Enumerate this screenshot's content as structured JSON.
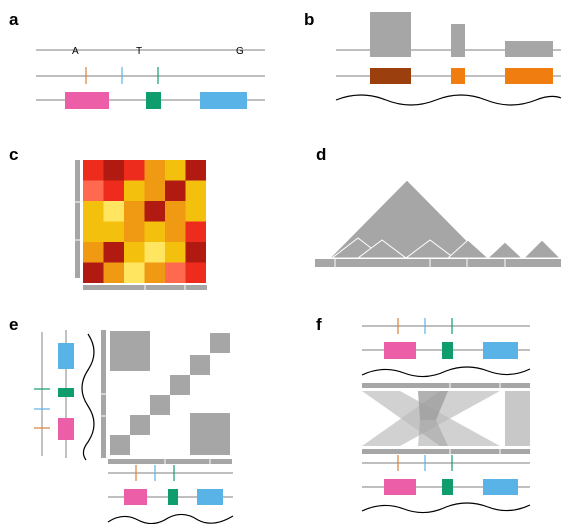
{
  "panels": {
    "a": {
      "label": "a",
      "bases": [
        "A",
        "T",
        "G"
      ]
    },
    "b": {
      "label": "b"
    },
    "c": {
      "label": "c"
    },
    "d": {
      "label": "d"
    },
    "e": {
      "label": "e"
    },
    "f": {
      "label": "f"
    }
  },
  "colors": {
    "pink": "#ec5fa8",
    "green": "#109d6e",
    "blue": "#5ab3e6",
    "orange_tick": "#d98035",
    "gray": "#a6a6a6",
    "brown": "#9c3f0e",
    "orange": "#f07d10"
  },
  "heatmap": {
    "rows": [
      [
        "#ee2c1e",
        "#b01a10",
        "#ee2c1e",
        "#f09a13",
        "#f4c00e",
        "#b01a10"
      ],
      [
        "#ff6950",
        "#ee2c1e",
        "#f4c00e",
        "#f09a13",
        "#b01a10",
        "#f4c00e"
      ],
      [
        "#f4c00e",
        "#ffe560",
        "#f09a13",
        "#b01a10",
        "#f09a13",
        "#f4c00e"
      ],
      [
        "#f4c00e",
        "#f4c00e",
        "#f09a13",
        "#f4c00e",
        "#f09a13",
        "#ee2c1e"
      ],
      [
        "#f09a13",
        "#b01a10",
        "#f4c00e",
        "#ffe560",
        "#f4c00e",
        "#b01a10"
      ],
      [
        "#b01a10",
        "#f09a13",
        "#ffe560",
        "#f09a13",
        "#ff6950",
        "#ee2c1e"
      ]
    ]
  }
}
